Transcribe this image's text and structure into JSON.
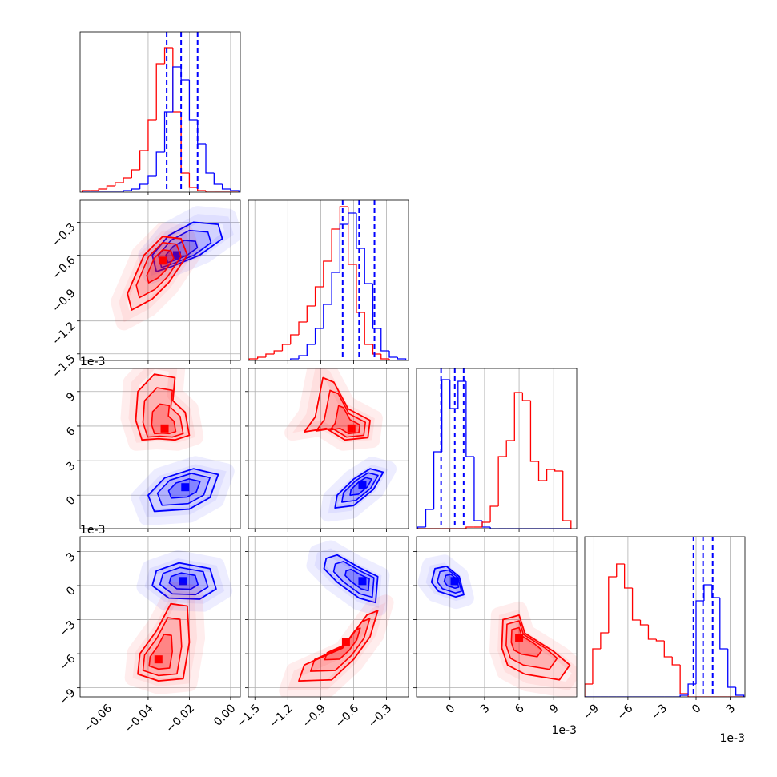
{
  "chart_data": {
    "type": "corner",
    "params": [
      {
        "lim": [
          -0.073,
          0.0047
        ],
        "ticks": [
          {
            "value": -0.06,
            "label": "−0.06"
          },
          {
            "value": -0.04,
            "label": "−0.04"
          },
          {
            "value": -0.02,
            "label": "−0.02"
          },
          {
            "value": 0,
            "label": "0.00"
          }
        ]
      },
      {
        "lim": [
          -1.56,
          -0.1
        ],
        "ticks": [
          {
            "value": -1.5,
            "label": "−1.5"
          },
          {
            "value": -1.2,
            "label": "−1.2"
          },
          {
            "value": -0.9,
            "label": "−0.9"
          },
          {
            "value": -0.6,
            "label": "−0.6"
          },
          {
            "value": -0.3,
            "label": "−0.3"
          }
        ]
      },
      {
        "lim": [
          -2.9,
          11.0
        ],
        "ticks": [
          0,
          3,
          6,
          9
        ],
        "x_offset": "1e-3",
        "y_offset": "1e-3"
      },
      {
        "lim": [
          -9.8,
          4.3
        ],
        "ticks": [
          {
            "value": -9,
            "label": "−9"
          },
          {
            "value": -6,
            "label": "−6"
          },
          {
            "value": -3,
            "label": "−3"
          },
          0,
          3
        ],
        "x_offset": "1e-3",
        "y_offset": "1e-3"
      }
    ],
    "histograms": [
      {
        "type": "histogram",
        "ylim": [
          0,
          100
        ],
        "bins": [
          -0.072,
          -0.068,
          -0.064,
          -0.06,
          -0.056,
          -0.052,
          -0.048,
          -0.044,
          -0.04,
          -0.036,
          -0.032,
          -0.028,
          -0.024,
          -0.02,
          -0.016,
          -0.012,
          -0.008,
          -0.004,
          0,
          0.004
        ],
        "series": [
          {
            "color": "#ff0000",
            "values": [
              1,
              1,
              2,
              4,
              6,
              9,
              14,
              26,
              45,
              80,
              90,
              50,
              12,
              3,
              1,
              0,
              0,
              0,
              0
            ]
          },
          {
            "color": "#0000ff",
            "values": [
              0,
              0,
              0,
              0,
              0,
              1,
              2,
              5,
              10,
              25,
              50,
              78,
              70,
              45,
              30,
              12,
              5,
              2,
              1
            ]
          }
        ],
        "quantiles": {
          "color": "#0000ff",
          "values": [
            -0.031,
            -0.024,
            -0.016
          ]
        }
      },
      {
        "type": "histogram",
        "ylim": [
          0,
          100
        ],
        "bins": [
          -1.55,
          -1.475,
          -1.4,
          -1.325,
          -1.25,
          -1.175,
          -1.1,
          -1.025,
          -0.95,
          -0.875,
          -0.8,
          -0.725,
          -0.65,
          -0.575,
          -0.5,
          -0.425,
          -0.35,
          -0.275,
          -0.2,
          -0.125
        ],
        "series": [
          {
            "color": "#ff0000",
            "values": [
              1,
              2,
              4,
              6,
              10,
              16,
              24,
              34,
              46,
              62,
              82,
              96,
              60,
              30,
              10,
              4,
              1,
              0,
              0
            ]
          },
          {
            "color": "#0000ff",
            "values": [
              0,
              0,
              0,
              0,
              0,
              1,
              3,
              10,
              20,
              35,
              55,
              85,
              92,
              70,
              48,
              20,
              6,
              2,
              1
            ]
          }
        ],
        "quantiles": {
          "color": "#0000ff",
          "values": [
            -0.7,
            -0.55,
            -0.41
          ]
        }
      },
      {
        "type": "histogram",
        "ylim": [
          0,
          100
        ],
        "bins": [
          -2.8,
          -2.1,
          -1.4,
          -0.7,
          0,
          0.7,
          1.4,
          2.1,
          2.8,
          3.5,
          4.2,
          4.9,
          5.6,
          6.3,
          7.0,
          7.7,
          8.4,
          9.1,
          9.8,
          10.5
        ],
        "series": [
          {
            "color": "#0000ff",
            "values": [
              1,
              12,
              48,
              93,
              75,
              92,
              45,
              5,
              1,
              0,
              0,
              0,
              0,
              0,
              0,
              0,
              0,
              0,
              0
            ]
          },
          {
            "color": "#ff0000",
            "values": [
              0,
              0,
              0,
              0,
              0,
              0,
              1,
              1,
              4,
              14,
              45,
              55,
              85,
              80,
              42,
              30,
              37,
              36,
              5
            ]
          }
        ],
        "quantiles": {
          "color": "#0000ff",
          "values": [
            -0.77,
            0.42,
            1.19
          ]
        }
      },
      {
        "type": "histogram",
        "ylim": [
          0,
          100
        ],
        "bins": [
          -9.8,
          -9.1,
          -8.4,
          -7.7,
          -7.0,
          -6.3,
          -5.6,
          -4.9,
          -4.2,
          -3.5,
          -2.8,
          -2.1,
          -1.4,
          -0.7,
          0,
          0.7,
          1.4,
          2.1,
          2.8,
          3.5,
          4.2
        ],
        "series": [
          {
            "color": "#ff0000",
            "values": [
              8,
              30,
              40,
              75,
              83,
              68,
              48,
              45,
              36,
              35,
              25,
              20,
              2,
              0,
              0,
              0,
              0,
              0,
              0,
              0
            ]
          },
          {
            "color": "#0000ff",
            "values": [
              0,
              0,
              0,
              0,
              0,
              0,
              0,
              0,
              0,
              0,
              0,
              0,
              1,
              8,
              60,
              70,
              62,
              30,
              6,
              1
            ]
          }
        ],
        "quantiles": {
          "color": "#0000ff",
          "values": [
            -0.23,
            0.61,
            1.46
          ]
        }
      }
    ],
    "pairs": [
      {
        "type": "contour",
        "series": [
          {
            "color": "#0000ff",
            "contour": {
              "x": [
                -0.036,
                -0.028,
                -0.015,
                -0.004,
                -0.006,
                -0.018,
                -0.03,
                -0.038
              ],
              "y": [
                -0.75,
                -0.7,
                -0.6,
                -0.45,
                -0.32,
                -0.3,
                -0.42,
                -0.6
              ]
            },
            "mode": {
              "x": -0.026,
              "y": -0.6
            }
          },
          {
            "color": "#ff0000",
            "contour": {
              "x": [
                -0.048,
                -0.038,
                -0.03,
                -0.021,
                -0.024,
                -0.033,
                -0.042,
                -0.05
              ],
              "y": [
                -1.1,
                -1.0,
                -0.85,
                -0.6,
                -0.45,
                -0.43,
                -0.6,
                -0.95
              ]
            },
            "mode": {
              "x": -0.033,
              "y": -0.65
            }
          }
        ]
      },
      {
        "type": "contour",
        "series": [
          {
            "color": "#ff0000",
            "contour": {
              "x": [
                -0.043,
                -0.035,
                -0.027,
                -0.02,
                -0.022,
                -0.028,
                -0.027,
                -0.037,
                -0.045,
                -0.046
              ],
              "y": [
                4.8,
                4.9,
                4.8,
                5.2,
                7.2,
                8.2,
                10.2,
                10.5,
                9,
                6.5
              ]
            },
            "mode": {
              "x": -0.032,
              "y": 5.8
            }
          },
          {
            "color": "#0000ff",
            "contour": {
              "x": [
                -0.037,
                -0.02,
                -0.01,
                -0.006,
                -0.018,
                -0.032,
                -0.04
              ],
              "y": [
                -1.4,
                -1.2,
                -0.2,
                1.8,
                2.3,
                1.5,
                0
              ]
            },
            "mode": {
              "x": -0.022,
              "y": 0.7
            }
          }
        ]
      },
      {
        "type": "contour",
        "series": [
          {
            "color": "#0000ff",
            "contour": {
              "x": [
                -0.038,
                -0.03,
                -0.015,
                -0.007,
                -0.01,
                -0.025,
                -0.036
              ],
              "y": [
                0,
                -1.1,
                -1.2,
                -0.3,
                1.5,
                2.0,
                1.3
              ]
            },
            "mode": {
              "x": -0.023,
              "y": 0.4
            }
          },
          {
            "color": "#ff0000",
            "contour": {
              "x": [
                -0.045,
                -0.035,
                -0.023,
                -0.02,
                -0.021,
                -0.029,
                -0.036,
                -0.044
              ],
              "y": [
                -7.8,
                -8.4,
                -8.2,
                -5,
                -1.8,
                -1.6,
                -4,
                -6
              ]
            },
            "mode": {
              "x": -0.035,
              "y": -6.5
            }
          }
        ]
      },
      {
        "type": "contour",
        "series": [
          {
            "color": "#ff0000",
            "contour": {
              "x": [
                -1.05,
                -0.95,
                -0.88,
                -0.78,
                -0.65,
                -0.45,
                -0.47,
                -0.68,
                -0.85
              ],
              "y": [
                5.5,
                6.8,
                10.2,
                9.8,
                7.5,
                6.5,
                5.0,
                4.8,
                5.8
              ]
            },
            "mode": {
              "x": -0.62,
              "y": 5.8
            }
          },
          {
            "color": "#0000ff",
            "contour": {
              "x": [
                -0.77,
                -0.6,
                -0.42,
                -0.33,
                -0.45,
                -0.6,
                -0.75
              ],
              "y": [
                -1.1,
                -0.9,
                0.5,
                2.0,
                2.3,
                1.4,
                0
              ]
            },
            "mode": {
              "x": -0.52,
              "y": 0.9
            }
          }
        ]
      },
      {
        "type": "contour",
        "series": [
          {
            "color": "#0000ff",
            "contour": {
              "x": [
                -0.85,
                -0.75,
                -0.55,
                -0.38,
                -0.4,
                -0.55,
                -0.75,
                -0.87
              ],
              "y": [
                2.4,
                2.7,
                1.6,
                0.8,
                -1.5,
                -1.1,
                0.3,
                1.5
              ]
            },
            "mode": {
              "x": -0.52,
              "y": 0.4
            }
          },
          {
            "color": "#ff0000",
            "contour": {
              "x": [
                -1.1,
                -0.8,
                -0.6,
                -0.45,
                -0.38,
                -0.48,
                -0.7,
                -1.05
              ],
              "y": [
                -8.4,
                -8.3,
                -6.5,
                -4.5,
                -2.2,
                -2.6,
                -5.5,
                -7
              ]
            },
            "mode": {
              "x": -0.67,
              "y": -5
            }
          }
        ]
      },
      {
        "type": "contour",
        "series": [
          {
            "color": "#0000ff",
            "contour": {
              "x": [
                -1.6,
                -1.3,
                -0.3,
                0.8,
                1.2,
                0.5,
                -1
              ],
              "y": [
                0.3,
                1.5,
                1.7,
                0.8,
                -0.8,
                -1.0,
                -0.5
              ]
            },
            "mode": {
              "x": 0.4,
              "y": 0.4
            }
          },
          {
            "color": "#ff0000",
            "contour": {
              "x": [
                4.5,
                4.6,
                6,
                6.5,
                9,
                10.4,
                9.5,
                6.5,
                5
              ],
              "y": [
                -5.5,
                -3,
                -2.6,
                -4.2,
                -5.8,
                -7,
                -8.3,
                -7.8,
                -7
              ]
            },
            "mode": {
              "x": 6,
              "y": -4.6
            }
          }
        ]
      }
    ]
  }
}
